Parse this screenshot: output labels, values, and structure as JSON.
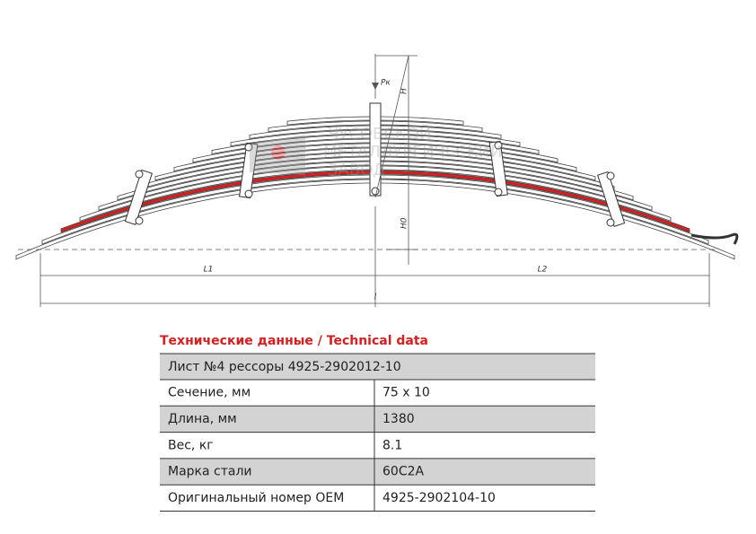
{
  "drawing": {
    "labels": {
      "load": "Pк",
      "height": "H",
      "height_free": "H0",
      "length_left": "L1",
      "length_right": "L2",
      "length": "l"
    },
    "watermark": [
      "ЧУСОВСКОЙ",
      "МЕТАЛЛУРГИЧЕСКИЙ",
      "ЗАВОД"
    ]
  },
  "table": {
    "title": "Технические данные / Technical data",
    "header": "Лист №4 рессоры 4925-2902012-10",
    "rows": [
      [
        "Сечение, мм",
        "75 x 10"
      ],
      [
        "Длина, мм",
        "1380"
      ],
      [
        "Вес, кг",
        "8.1"
      ],
      [
        "Марка стали",
        "60С2А"
      ],
      [
        "Оригинальный номер OEM",
        "4925-2902104-10"
      ]
    ]
  }
}
